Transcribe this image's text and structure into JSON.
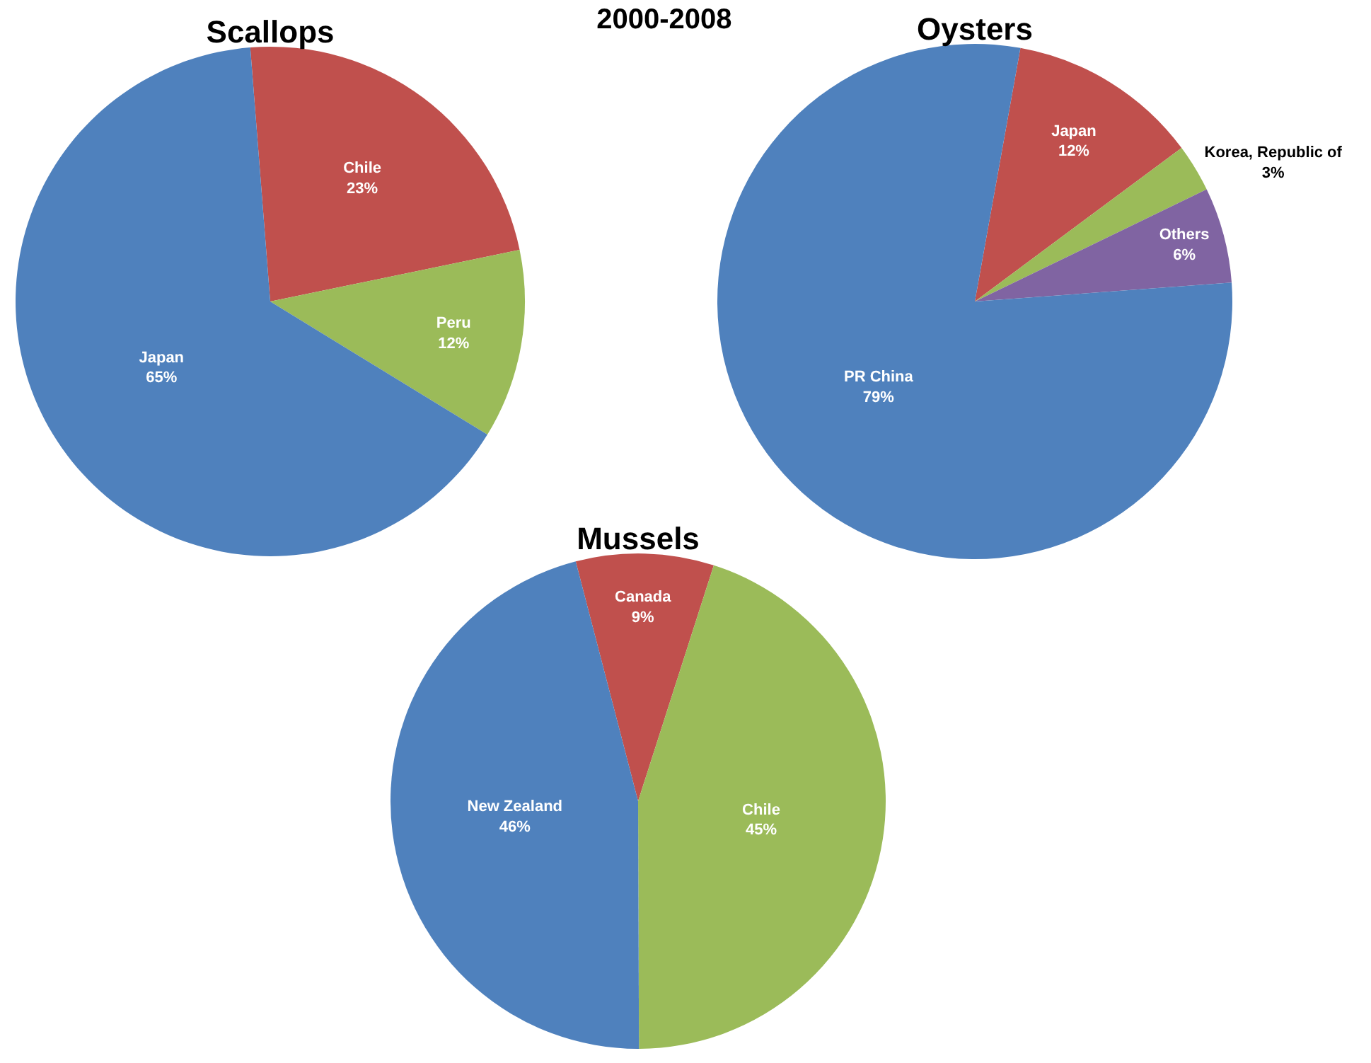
{
  "chart_data": [
    {
      "type": "other",
      "title": "2000-2008"
    },
    {
      "type": "pie",
      "title": "Scallops",
      "categories": [
        "Chile",
        "Peru",
        "Japan"
      ],
      "values": [
        23,
        12,
        65
      ],
      "colors": [
        "#c0504d",
        "#9bbb59",
        "#4f81bd"
      ],
      "value_labels": [
        "23%",
        "12%",
        "65%"
      ]
    },
    {
      "type": "pie",
      "title": "Oysters",
      "categories": [
        "Japan",
        "Korea, Republic of",
        "Others",
        "PR China"
      ],
      "values": [
        12,
        3,
        6,
        79
      ],
      "colors": [
        "#c0504d",
        "#9bbb59",
        "#8064a2",
        "#4f81bd"
      ],
      "value_labels": [
        "12%",
        "3%",
        "6%",
        "79%"
      ]
    },
    {
      "type": "pie",
      "title": "Mussels",
      "categories": [
        "Canada",
        "Chile",
        "New Zealand"
      ],
      "values": [
        9,
        45,
        46
      ],
      "colors": [
        "#c0504d",
        "#9bbb59",
        "#4f81bd"
      ],
      "value_labels": [
        "9%",
        "45%",
        "46%"
      ]
    }
  ]
}
